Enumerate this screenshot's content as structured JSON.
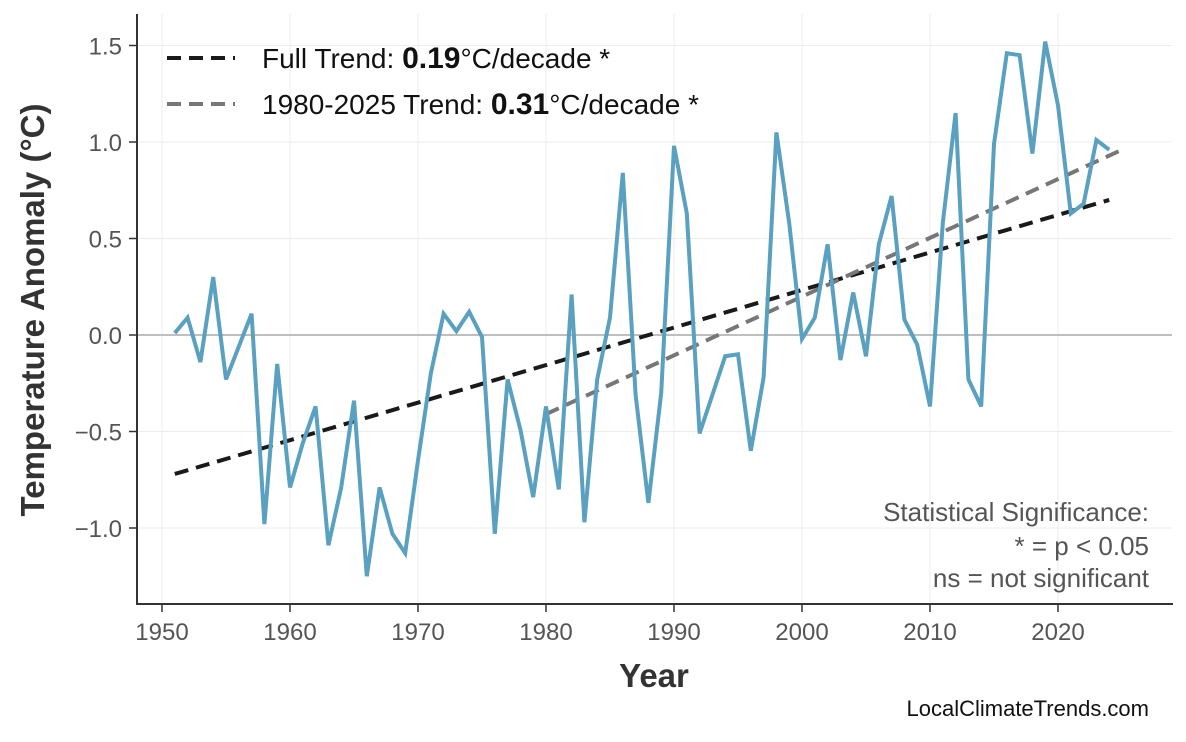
{
  "chart_data": {
    "type": "line",
    "title": "",
    "xlabel": "Year",
    "ylabel": "Temperature Anomaly (°C)",
    "xlim": [
      1947.5,
      2028.5
    ],
    "ylim": [
      -1.38,
      1.65
    ],
    "xticks": [
      1950,
      1960,
      1970,
      1980,
      1990,
      2000,
      2010,
      2020
    ],
    "yticks": [
      -1.0,
      -0.5,
      0.0,
      0.5,
      1.0,
      1.5
    ],
    "ytick_labels": [
      "−1.0",
      "−0.5",
      "0.0",
      "0.5",
      "1.0",
      "1.5"
    ],
    "grid": true,
    "series": [
      {
        "color": "#5aa0c0",
        "x": [
          1951,
          1952,
          1953,
          1954,
          1955,
          1956,
          1957,
          1958,
          1959,
          1960,
          1961,
          1962,
          1963,
          1964,
          1965,
          1966,
          1967,
          1968,
          1969,
          1970,
          1971,
          1972,
          1973,
          1974,
          1975,
          1976,
          1977,
          1978,
          1979,
          1980,
          1981,
          1982,
          1983,
          1984,
          1985,
          1986,
          1987,
          1988,
          1989,
          1990,
          1991,
          1992,
          1993,
          1994,
          1995,
          1996,
          1997,
          1998,
          1999,
          2000,
          2001,
          2002,
          2003,
          2004,
          2005,
          2006,
          2007,
          2008,
          2009,
          2010,
          2011,
          2012,
          2013,
          2014,
          2015,
          2016,
          2017,
          2018,
          2019,
          2020,
          2021,
          2022,
          2023,
          2024
        ],
        "y": [
          0.01,
          0.09,
          -0.14,
          0.3,
          -0.23,
          -0.06,
          0.11,
          -0.98,
          -0.15,
          -0.79,
          -0.56,
          -0.37,
          -1.09,
          -0.79,
          -0.34,
          -1.25,
          -0.79,
          -1.03,
          -1.13,
          -0.65,
          -0.2,
          0.11,
          0.02,
          0.12,
          -0.01,
          -1.03,
          -0.23,
          -0.49,
          -0.84,
          -0.37,
          -0.8,
          0.21,
          -0.97,
          -0.23,
          0.09,
          0.84,
          -0.31,
          -0.87,
          -0.3,
          0.98,
          0.63,
          -0.51,
          -0.31,
          -0.11,
          -0.1,
          -0.6,
          -0.22,
          1.05,
          0.58,
          -0.02,
          0.09,
          0.47,
          -0.13,
          0.22,
          -0.11,
          0.47,
          0.72,
          0.08,
          -0.05,
          -0.37,
          0.58,
          1.15,
          -0.23,
          -0.37,
          0.99,
          1.46,
          1.45,
          0.94,
          1.52,
          1.19,
          0.63,
          0.68,
          1.01,
          0.96
        ]
      }
    ],
    "trends": [
      {
        "name_prefix": "Full Trend: ",
        "value": "0.19",
        "suffix": "°C/decade *",
        "color": "#1a1a1a",
        "x": [
          1951,
          2024
        ],
        "y": [
          -0.72,
          0.7
        ]
      },
      {
        "name_prefix": "1980-2025 Trend: ",
        "value": "0.31",
        "suffix": "°C/decade *",
        "color": "#777777",
        "x": [
          1980,
          2025
        ],
        "y": [
          -0.41,
          0.96
        ]
      }
    ],
    "legend_position": "top-left",
    "annotation": [
      "Statistical Significance:",
      "* = p < 0.05",
      "ns = not significant"
    ],
    "credit": "LocalClimateTrends.com"
  }
}
